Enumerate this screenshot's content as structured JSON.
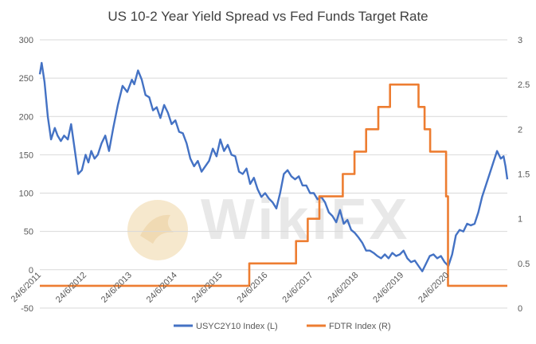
{
  "chart_data": {
    "type": "line",
    "title": "US 10-2 Year Yield Spread vs Fed Funds Target Rate",
    "watermark": "WikiFX",
    "grid": "horizontal",
    "legend_position": "bottom",
    "left_axis": {
      "ylim": [
        -50,
        300
      ],
      "ticks": [
        "300",
        "250",
        "200",
        "150",
        "100",
        "50",
        "0",
        "-50"
      ]
    },
    "right_axis": {
      "ylim": [
        0,
        3
      ],
      "ticks": [
        "3",
        "2.5",
        "2",
        "1.5",
        "1",
        "0.5",
        "0"
      ]
    },
    "x_ticks": [
      "24/6/2011",
      "24/6/2012",
      "24/6/2013",
      "24/6/2014",
      "24/6/2015",
      "24/6/2016",
      "24/6/2017",
      "24/6/2018",
      "24/6/2019",
      "24/6/2020"
    ],
    "xlim": [
      2011.48,
      2021.48
    ],
    "series": [
      {
        "name": "USYC2Y10 Index  (L)",
        "axis": "left",
        "color": "#4472c4",
        "x": [
          2011.48,
          2011.52,
          2011.58,
          2011.65,
          2011.72,
          2011.8,
          2011.86,
          2011.93,
          2012.0,
          2012.08,
          2012.15,
          2012.22,
          2012.3,
          2012.38,
          2012.46,
          2012.52,
          2012.58,
          2012.65,
          2012.72,
          2012.8,
          2012.88,
          2012.96,
          2013.05,
          2013.15,
          2013.25,
          2013.35,
          2013.45,
          2013.5,
          2013.58,
          2013.66,
          2013.74,
          2013.82,
          2013.9,
          2013.98,
          2014.06,
          2014.14,
          2014.22,
          2014.3,
          2014.38,
          2014.46,
          2014.54,
          2014.62,
          2014.7,
          2014.78,
          2014.86,
          2014.94,
          2015.02,
          2015.1,
          2015.18,
          2015.26,
          2015.34,
          2015.42,
          2015.5,
          2015.58,
          2015.66,
          2015.74,
          2015.82,
          2015.9,
          2015.98,
          2016.06,
          2016.14,
          2016.22,
          2016.3,
          2016.38,
          2016.46,
          2016.54,
          2016.62,
          2016.7,
          2016.78,
          2016.86,
          2016.94,
          2017.02,
          2017.1,
          2017.18,
          2017.26,
          2017.34,
          2017.42,
          2017.5,
          2017.58,
          2017.66,
          2017.74,
          2017.82,
          2017.9,
          2017.98,
          2018.06,
          2018.14,
          2018.22,
          2018.3,
          2018.38,
          2018.46,
          2018.54,
          2018.62,
          2018.7,
          2018.78,
          2018.86,
          2018.94,
          2019.02,
          2019.1,
          2019.18,
          2019.26,
          2019.34,
          2019.42,
          2019.5,
          2019.58,
          2019.66,
          2019.74,
          2019.82,
          2019.9,
          2019.98,
          2020.06,
          2020.14,
          2020.22,
          2020.3,
          2020.38,
          2020.46,
          2020.54,
          2020.62,
          2020.7,
          2020.78,
          2020.86,
          2020.94,
          2021.02,
          2021.1,
          2021.18,
          2021.26,
          2021.34,
          2021.4,
          2021.44,
          2021.48
        ],
        "y": [
          255,
          270,
          245,
          200,
          170,
          185,
          175,
          168,
          175,
          170,
          190,
          160,
          125,
          130,
          150,
          140,
          155,
          145,
          150,
          165,
          175,
          155,
          185,
          215,
          240,
          232,
          248,
          242,
          260,
          248,
          228,
          225,
          208,
          212,
          198,
          215,
          205,
          190,
          195,
          180,
          178,
          165,
          145,
          135,
          142,
          128,
          135,
          142,
          158,
          148,
          170,
          155,
          163,
          150,
          148,
          128,
          125,
          132,
          112,
          120,
          105,
          95,
          100,
          93,
          88,
          80,
          100,
          125,
          130,
          122,
          118,
          122,
          110,
          110,
          100,
          100,
          92,
          95,
          88,
          75,
          70,
          62,
          78,
          60,
          65,
          52,
          48,
          42,
          35,
          25,
          25,
          22,
          18,
          15,
          20,
          15,
          22,
          18,
          20,
          25,
          15,
          10,
          12,
          5,
          -2,
          8,
          18,
          20,
          15,
          18,
          10,
          5,
          20,
          45,
          52,
          50,
          60,
          58,
          60,
          75,
          95,
          110,
          125,
          140,
          155,
          145,
          148,
          135,
          118
        ]
      },
      {
        "name": "FDTR Index  (R)",
        "axis": "right",
        "color": "#ed7d31",
        "x": [
          2011.48,
          2015.96,
          2015.96,
          2016.96,
          2016.96,
          2017.21,
          2017.21,
          2017.46,
          2017.46,
          2017.96,
          2017.96,
          2018.21,
          2018.21,
          2018.46,
          2018.46,
          2018.72,
          2018.72,
          2018.97,
          2018.97,
          2019.58,
          2019.58,
          2019.71,
          2019.71,
          2019.83,
          2019.83,
          2020.17,
          2020.17,
          2020.21,
          2020.21,
          2021.48
        ],
        "y": [
          0.25,
          0.25,
          0.5,
          0.5,
          0.75,
          0.75,
          1.0,
          1.0,
          1.25,
          1.25,
          1.5,
          1.5,
          1.75,
          1.75,
          2.0,
          2.0,
          2.25,
          2.25,
          2.5,
          2.5,
          2.25,
          2.25,
          2.0,
          2.0,
          1.75,
          1.75,
          1.25,
          1.25,
          0.25,
          0.25
        ]
      }
    ]
  }
}
